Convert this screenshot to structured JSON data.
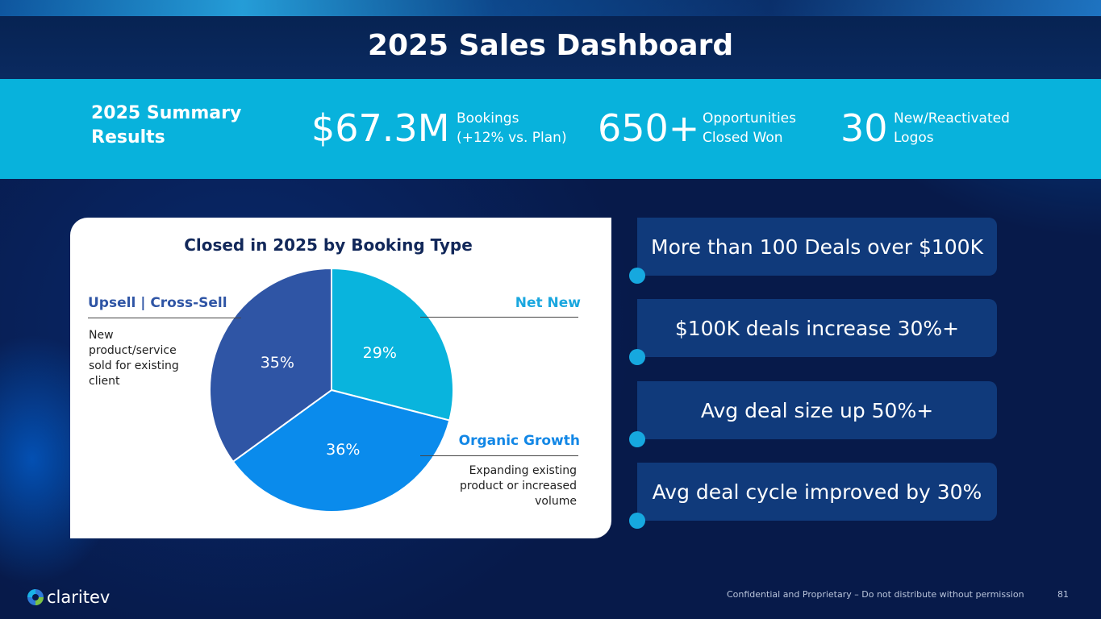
{
  "header": {
    "title": "2025 Sales Dashboard"
  },
  "summary": {
    "label": "2025 Summary Results",
    "kpis": [
      {
        "value": "$67.3M",
        "line1": "Bookings",
        "line2": "(+12% vs. Plan)"
      },
      {
        "value": "650+",
        "line1": "Opportunities",
        "line2": "Closed Won"
      },
      {
        "value": "30",
        "line1": "New/Reactivated",
        "line2": "Logos"
      }
    ]
  },
  "chart_data": {
    "type": "pie",
    "title": "Closed in 2025 by Booking Type",
    "slices": [
      {
        "label": "Net New",
        "value": 29,
        "display": "29%",
        "color": "#09b4dd"
      },
      {
        "label": "Organic Growth",
        "value": 36,
        "display": "36%",
        "color": "#0a8bec"
      },
      {
        "label": "Upsell | Cross-Sell",
        "value": 35,
        "display": "35%",
        "color": "#2f55a5"
      }
    ],
    "descriptions": {
      "upsell": "New product/service sold for existing client",
      "organic": "Expanding existing product or increased volume"
    }
  },
  "highlights": [
    "More than 100 Deals over $100K",
    "$100K deals increase 30%+",
    "Avg deal size up 50%+",
    "Avg deal cycle improved by 30%"
  ],
  "footer": {
    "logo": "claritev",
    "confidential": "Confidential and Proprietary – Do not distribute without permission",
    "page_number": "81"
  },
  "colors": {
    "summary_bar": "#08b2dc",
    "navy": "#12285a",
    "net_new_label": "#1aa7df",
    "organic_label": "#1287e6",
    "upsell_label": "#2f55a5"
  }
}
